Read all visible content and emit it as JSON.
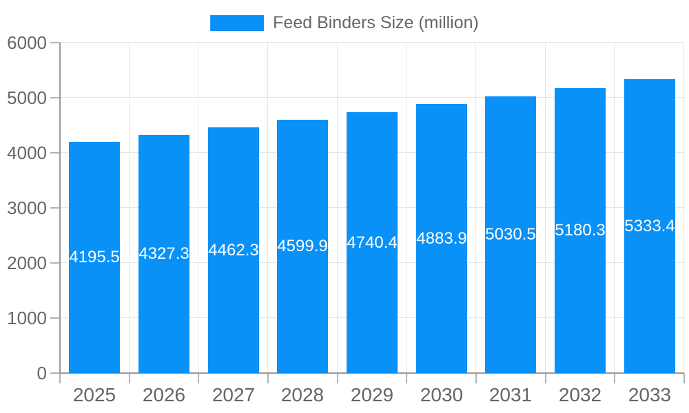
{
  "legend": {
    "label": "Feed Binders Size (million)"
  },
  "colors": {
    "bar": "#0a91f8",
    "axis_label": "#666666",
    "grid": "#e6e6e6",
    "axis_line": "#999999",
    "tick": "#b3b3b3",
    "value_label": "#ffffff",
    "background": "#ffffff"
  },
  "chart_data": {
    "type": "bar",
    "title": "Feed Binders Size (million)",
    "series_name": "Feed Binders Size (million)",
    "categories": [
      "2025",
      "2026",
      "2027",
      "2028",
      "2029",
      "2030",
      "2031",
      "2032",
      "2033"
    ],
    "values": [
      4195.5,
      4327.3,
      4462.3,
      4599.9,
      4740.4,
      4883.9,
      5030.5,
      5180.3,
      5333.4
    ],
    "value_label_decimals": 1,
    "xlabel": "",
    "ylabel": "",
    "ylim": [
      0,
      6000
    ],
    "y_ticks": [
      0,
      1000,
      2000,
      3000,
      4000,
      5000,
      6000
    ],
    "grid": true,
    "legend_position": "top",
    "value_labels_position": "inside-center"
  }
}
